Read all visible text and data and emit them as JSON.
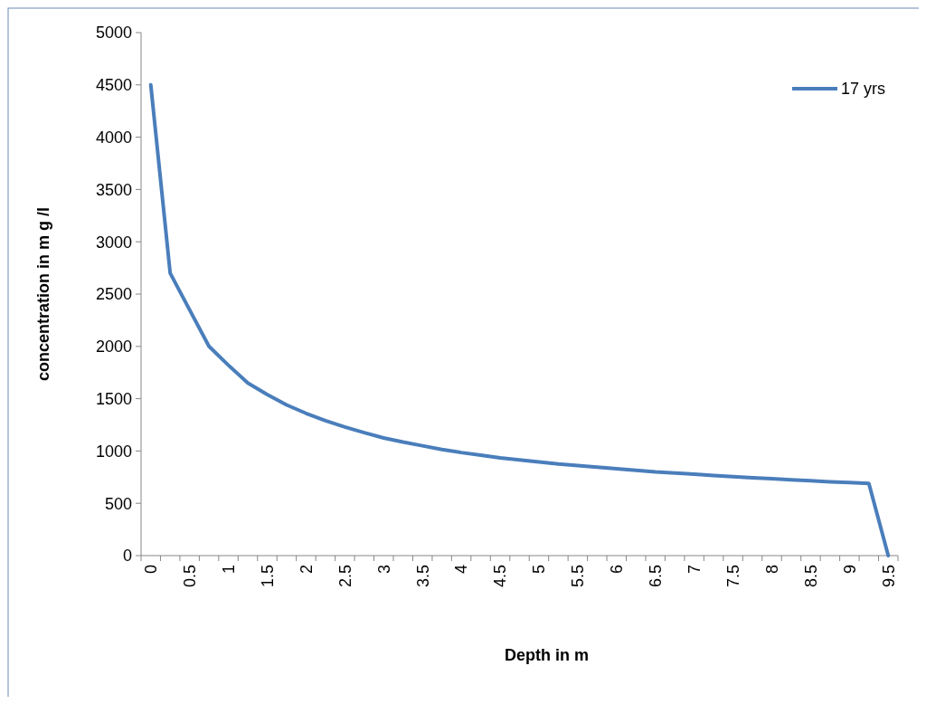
{
  "chart_data": {
    "type": "line",
    "xlabel": "Depth in m",
    "ylabel": "concentration in m g /l",
    "categories": [
      "0",
      null,
      "0.5",
      null,
      "1",
      null,
      "1.5",
      null,
      "2",
      null,
      "2.5",
      null,
      "3",
      null,
      "3.5",
      null,
      "4",
      null,
      "4.5",
      null,
      "5",
      null,
      "5.5",
      null,
      "6",
      null,
      "6.5",
      null,
      "7",
      null,
      "7.5",
      null,
      "8",
      null,
      "8.5",
      null,
      "9",
      null,
      "9.5"
    ],
    "series": [
      {
        "name": "17 yrs",
        "color": "#4a7ebb",
        "values": [
          4500,
          2700,
          2350,
          2000,
          1820,
          1650,
          1540,
          1440,
          1360,
          1290,
          1230,
          1175,
          1125,
          1085,
          1050,
          1015,
          985,
          960,
          935,
          915,
          895,
          875,
          860,
          845,
          830,
          815,
          800,
          790,
          778,
          765,
          755,
          745,
          735,
          725,
          715,
          705,
          698,
          690,
          0
        ]
      }
    ],
    "ylim": [
      0,
      5000
    ],
    "yticks": [
      0,
      500,
      1000,
      1500,
      2000,
      2500,
      3000,
      3500,
      4000,
      4500,
      5000
    ],
    "grid": false,
    "legend": "top right",
    "marker": "none",
    "line_style": "solid"
  }
}
